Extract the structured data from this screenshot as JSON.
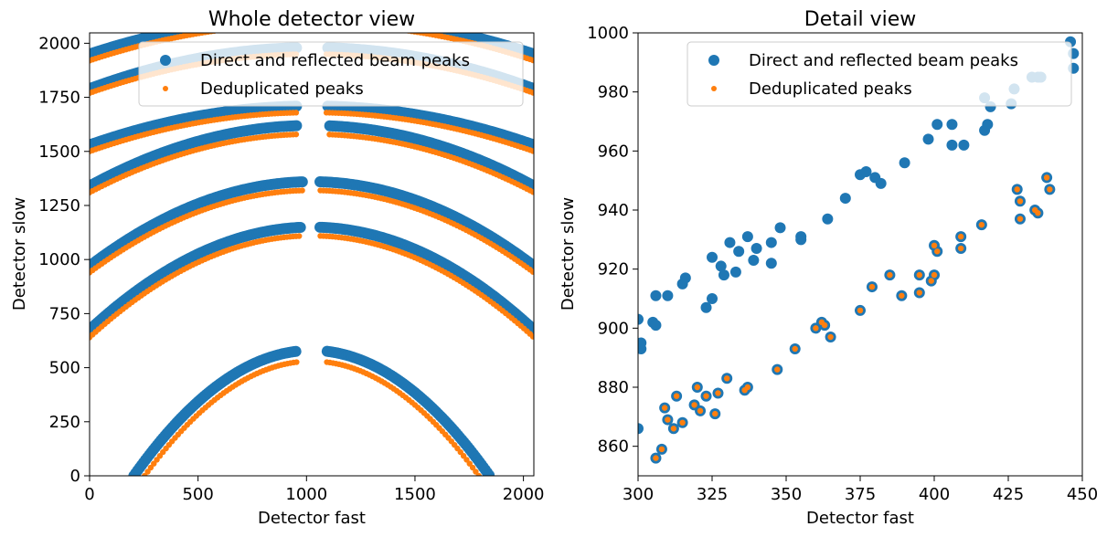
{
  "figure": {
    "colors": {
      "direct": "#1f77b4",
      "dedup": "#ff7f0e"
    }
  },
  "chart_data": [
    {
      "type": "scatter",
      "title": "Whole detector view",
      "xlabel": "Detector fast",
      "ylabel": "Detector slow",
      "xlim": [
        0,
        2048
      ],
      "ylim": [
        0,
        2048
      ],
      "xticks": [
        0,
        500,
        1000,
        1500,
        2000
      ],
      "yticks": [
        0,
        250,
        500,
        750,
        1000,
        1250,
        1500,
        1750,
        2000
      ],
      "legend": {
        "position": "top-right",
        "entries": [
          "Direct and reflected beam peaks",
          "Deduplicated peaks"
        ]
      },
      "grid": false,
      "series": [
        {
          "name": "Direct and reflected beam peaks",
          "color": "#1f77b4",
          "arcs": [
            {
              "center_x": 1024,
              "peak_y": 580,
              "half_width": 820,
              "end_y": 0,
              "gap": [
                960,
                1090
              ]
            },
            {
              "center_x": 1024,
              "peak_y": 1150,
              "half_width": 1024,
              "end_y": 675,
              "gap": [
                980,
                1060
              ]
            },
            {
              "center_x": 1024,
              "peak_y": 1360,
              "half_width": 1024,
              "end_y": 970,
              "gap": [
                990,
                1060
              ]
            },
            {
              "center_x": 1024,
              "peak_y": 1620,
              "half_width": 1024,
              "end_y": 1340,
              "gap": [
                960,
                1100
              ]
            },
            {
              "center_x": 1024,
              "peak_y": 1710,
              "half_width": 1024,
              "end_y": 1530,
              "gap": [
                960,
                1090
              ]
            },
            {
              "center_x": 1024,
              "peak_y": 1980,
              "half_width": 1024,
              "end_y": 1790,
              "gap": [
                960,
                1090
              ]
            },
            {
              "center_x": 1024,
              "peak_y": 2120,
              "half_width": 1024,
              "end_y": 1950,
              "gap": [
                960,
                1090
              ]
            }
          ]
        },
        {
          "name": "Deduplicated peaks",
          "color": "#ff7f0e",
          "arcs": [
            {
              "center_x": 1024,
              "peak_y": 530,
              "half_width": 770,
              "end_y": 0,
              "gap": [
                960,
                1090
              ]
            },
            {
              "center_x": 1024,
              "peak_y": 1110,
              "half_width": 1024,
              "end_y": 640,
              "gap": [
                980,
                1060
              ]
            },
            {
              "center_x": 1024,
              "peak_y": 1320,
              "half_width": 1024,
              "end_y": 940,
              "gap": [
                990,
                1060
              ]
            },
            {
              "center_x": 1024,
              "peak_y": 1580,
              "half_width": 1024,
              "end_y": 1310,
              "gap": [
                960,
                1100
              ]
            },
            {
              "center_x": 1024,
              "peak_y": 1680,
              "half_width": 1024,
              "end_y": 1500,
              "gap": [
                960,
                1090
              ]
            },
            {
              "center_x": 1024,
              "peak_y": 1950,
              "half_width": 1024,
              "end_y": 1770,
              "gap": [
                960,
                1090
              ]
            },
            {
              "center_x": 1024,
              "peak_y": 2090,
              "half_width": 1024,
              "end_y": 1920,
              "gap": [
                960,
                1090
              ]
            }
          ]
        }
      ]
    },
    {
      "type": "scatter",
      "title": "Detail view",
      "xlabel": "Detector fast",
      "ylabel": "Detector slow",
      "xlim": [
        300,
        450
      ],
      "ylim": [
        850,
        1000
      ],
      "xticks": [
        300,
        325,
        350,
        375,
        400,
        425,
        450
      ],
      "yticks": [
        860,
        880,
        900,
        920,
        940,
        960,
        980,
        1000
      ],
      "legend": {
        "position": "top-right",
        "entries": [
          "Direct and reflected beam peaks",
          "Deduplicated peaks"
        ]
      },
      "grid": false,
      "series": [
        {
          "name": "Direct and reflected beam peaks",
          "color": "#1f77b4",
          "points": [
            [
              300,
              866
            ],
            [
              300,
              903
            ],
            [
              301,
              893
            ],
            [
              301,
              895
            ],
            [
              305,
              902
            ],
            [
              306,
              856
            ],
            [
              306,
              901
            ],
            [
              306,
              911
            ],
            [
              308,
              859
            ],
            [
              309,
              873
            ],
            [
              310,
              869
            ],
            [
              310,
              911
            ],
            [
              312,
              866
            ],
            [
              313,
              877
            ],
            [
              315,
              868
            ],
            [
              315,
              915
            ],
            [
              316,
              917
            ],
            [
              319,
              874
            ],
            [
              320,
              880
            ],
            [
              321,
              872
            ],
            [
              323,
              877
            ],
            [
              323,
              907
            ],
            [
              325,
              910
            ],
            [
              325,
              924
            ],
            [
              326,
              871
            ],
            [
              327,
              878
            ],
            [
              328,
              921
            ],
            [
              329,
              918
            ],
            [
              330,
              883
            ],
            [
              331,
              929
            ],
            [
              333,
              919
            ],
            [
              334,
              926
            ],
            [
              336,
              879
            ],
            [
              337,
              880
            ],
            [
              337,
              931
            ],
            [
              339,
              923
            ],
            [
              340,
              927
            ],
            [
              345,
              922
            ],
            [
              345,
              929
            ],
            [
              347,
              886
            ],
            [
              348,
              934
            ],
            [
              353,
              893
            ],
            [
              355,
              930
            ],
            [
              355,
              931
            ],
            [
              360,
              900
            ],
            [
              362,
              902
            ],
            [
              363,
              901
            ],
            [
              364,
              937
            ],
            [
              365,
              897
            ],
            [
              370,
              944
            ],
            [
              375,
              906
            ],
            [
              375,
              952
            ],
            [
              377,
              953
            ],
            [
              379,
              914
            ],
            [
              380,
              951
            ],
            [
              382,
              949
            ],
            [
              385,
              918
            ],
            [
              389,
              911
            ],
            [
              390,
              956
            ],
            [
              395,
              912
            ],
            [
              395,
              918
            ],
            [
              398,
              964
            ],
            [
              399,
              916
            ],
            [
              400,
              928
            ],
            [
              400,
              918
            ],
            [
              401,
              926
            ],
            [
              401,
              969
            ],
            [
              406,
              962
            ],
            [
              406,
              969
            ],
            [
              409,
              927
            ],
            [
              409,
              931
            ],
            [
              410,
              962
            ],
            [
              416,
              935
            ],
            [
              417,
              978
            ],
            [
              417,
              967
            ],
            [
              418,
              969
            ],
            [
              419,
              975
            ],
            [
              426,
              976
            ],
            [
              427,
              981
            ],
            [
              428,
              947
            ],
            [
              429,
              937
            ],
            [
              429,
              943
            ],
            [
              433,
              985
            ],
            [
              434,
              940
            ],
            [
              435,
              985
            ],
            [
              435,
              939
            ],
            [
              436,
              985
            ],
            [
              438,
              951
            ],
            [
              439,
              947
            ],
            [
              446,
              997
            ],
            [
              447,
              993
            ],
            [
              447,
              988
            ]
          ]
        },
        {
          "name": "Deduplicated peaks",
          "color": "#ff7f0e",
          "points": [
            [
              306,
              856
            ],
            [
              308,
              859
            ],
            [
              309,
              873
            ],
            [
              310,
              869
            ],
            [
              312,
              866
            ],
            [
              313,
              877
            ],
            [
              315,
              868
            ],
            [
              319,
              874
            ],
            [
              320,
              880
            ],
            [
              321,
              872
            ],
            [
              323,
              877
            ],
            [
              326,
              871
            ],
            [
              327,
              878
            ],
            [
              330,
              883
            ],
            [
              336,
              879
            ],
            [
              337,
              880
            ],
            [
              347,
              886
            ],
            [
              353,
              893
            ],
            [
              360,
              900
            ],
            [
              362,
              902
            ],
            [
              363,
              901
            ],
            [
              365,
              897
            ],
            [
              375,
              906
            ],
            [
              379,
              914
            ],
            [
              385,
              918
            ],
            [
              389,
              911
            ],
            [
              395,
              912
            ],
            [
              395,
              918
            ],
            [
              399,
              916
            ],
            [
              400,
              928
            ],
            [
              400,
              918
            ],
            [
              401,
              926
            ],
            [
              409,
              927
            ],
            [
              409,
              931
            ],
            [
              416,
              935
            ],
            [
              428,
              947
            ],
            [
              429,
              937
            ],
            [
              429,
              943
            ],
            [
              434,
              940
            ],
            [
              435,
              939
            ],
            [
              438,
              951
            ],
            [
              439,
              947
            ]
          ]
        }
      ]
    }
  ]
}
